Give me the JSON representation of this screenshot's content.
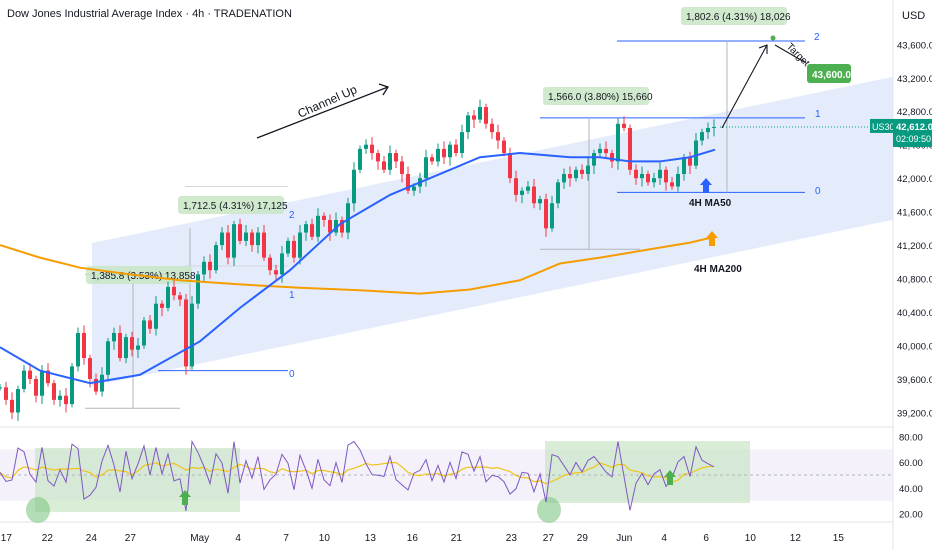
{
  "chart_title": "Dow Jones Industrial Average Index · 4h · TRADENATION",
  "currency": "USD",
  "colors": {
    "up": "#089981",
    "down": "#f23645",
    "ma50": "#2962ff",
    "ma200": "#f59d00",
    "channel": "#dbe6fb",
    "rsi": "#7e57c2",
    "rsi_ma": "#f0c419",
    "green_box": "#c9e6c6",
    "label_green": "#4caf50"
  },
  "chart_data": [
    {
      "type": "candlestick",
      "symbol": "US30",
      "timeframe": "4h",
      "ylim": [
        39050,
        43950
      ],
      "y_ticks": [
        "43,600.0",
        "43,200.0",
        "42,800.0",
        "42,400.0",
        "42,000.0",
        "41,600.0",
        "41,200.0",
        "40,800.0",
        "40,400.0",
        "40,000.0",
        "39,600.0",
        "39,200.0"
      ],
      "x_ticks": [
        "17",
        "22",
        "24",
        "27",
        "May",
        "4",
        "7",
        "10",
        "13",
        "16",
        "21",
        "23",
        "27",
        "29",
        "Jun",
        "4",
        "6",
        "10",
        "12",
        "15"
      ],
      "last_price": "42,612.0",
      "countdown": "02:09:50",
      "price_label": "US30",
      "close_path": [
        [
          0,
          39500
        ],
        [
          6,
          39350
        ],
        [
          12,
          39200
        ],
        [
          18,
          39480
        ],
        [
          24,
          39700
        ],
        [
          30,
          39600
        ],
        [
          36,
          39400
        ],
        [
          42,
          39700
        ],
        [
          48,
          39550
        ],
        [
          54,
          39350
        ],
        [
          60,
          39400
        ],
        [
          66,
          39300
        ],
        [
          72,
          39750
        ],
        [
          78,
          40150
        ],
        [
          84,
          39850
        ],
        [
          90,
          39600
        ],
        [
          96,
          39450
        ],
        [
          102,
          39650
        ],
        [
          108,
          40050
        ],
        [
          114,
          40150
        ],
        [
          120,
          39850
        ],
        [
          126,
          40100
        ],
        [
          132,
          39950
        ],
        [
          138,
          40000
        ],
        [
          144,
          40300
        ],
        [
          150,
          40200
        ],
        [
          156,
          40500
        ],
        [
          162,
          40450
        ],
        [
          168,
          40700
        ],
        [
          174,
          40600
        ],
        [
          180,
          40550
        ],
        [
          186,
          39750
        ],
        [
          192,
          40500
        ],
        [
          198,
          40850
        ],
        [
          204,
          41000
        ],
        [
          210,
          40900
        ],
        [
          216,
          41200
        ],
        [
          222,
          41350
        ],
        [
          228,
          41050
        ],
        [
          234,
          41450
        ],
        [
          240,
          41250
        ],
        [
          246,
          41350
        ],
        [
          252,
          41200
        ],
        [
          258,
          41350
        ],
        [
          264,
          41050
        ],
        [
          270,
          40900
        ],
        [
          276,
          40850
        ],
        [
          282,
          41100
        ],
        [
          288,
          41250
        ],
        [
          294,
          41050
        ],
        [
          300,
          41350
        ],
        [
          306,
          41450
        ],
        [
          312,
          41300
        ],
        [
          318,
          41550
        ],
        [
          324,
          41500
        ],
        [
          330,
          41350
        ],
        [
          336,
          41500
        ],
        [
          342,
          41350
        ],
        [
          348,
          41700
        ],
        [
          354,
          42100
        ],
        [
          360,
          42350
        ],
        [
          366,
          42400
        ],
        [
          372,
          42300
        ],
        [
          378,
          42200
        ],
        [
          384,
          42100
        ],
        [
          390,
          42300
        ],
        [
          396,
          42200
        ],
        [
          402,
          42050
        ],
        [
          408,
          41850
        ],
        [
          414,
          41900
        ],
        [
          420,
          42000
        ],
        [
          426,
          42250
        ],
        [
          432,
          42200
        ],
        [
          438,
          42350
        ],
        [
          444,
          42250
        ],
        [
          450,
          42400
        ],
        [
          456,
          42300
        ],
        [
          462,
          42550
        ],
        [
          468,
          42750
        ],
        [
          474,
          42700
        ],
        [
          480,
          42850
        ],
        [
          486,
          42650
        ],
        [
          492,
          42550
        ],
        [
          498,
          42450
        ],
        [
          504,
          42300
        ],
        [
          510,
          42000
        ],
        [
          516,
          41800
        ],
        [
          522,
          41850
        ],
        [
          528,
          41900
        ],
        [
          534,
          41700
        ],
        [
          540,
          41750
        ],
        [
          546,
          41400
        ],
        [
          552,
          41700
        ],
        [
          558,
          41950
        ],
        [
          564,
          42050
        ],
        [
          570,
          42000
        ],
        [
          576,
          42100
        ],
        [
          582,
          42050
        ],
        [
          588,
          42150
        ],
        [
          594,
          42300
        ],
        [
          600,
          42350
        ],
        [
          606,
          42300
        ],
        [
          612,
          42200
        ],
        [
          618,
          42650
        ],
        [
          624,
          42600
        ],
        [
          630,
          42100
        ],
        [
          636,
          42000
        ],
        [
          642,
          42050
        ],
        [
          648,
          41950
        ],
        [
          654,
          42000
        ],
        [
          660,
          42100
        ],
        [
          666,
          41950
        ],
        [
          672,
          41900
        ],
        [
          678,
          42050
        ],
        [
          684,
          42250
        ],
        [
          690,
          42150
        ],
        [
          696,
          42450
        ],
        [
          702,
          42550
        ],
        [
          708,
          42600
        ],
        [
          714,
          42612
        ]
      ],
      "ma50": [
        [
          0,
          39980
        ],
        [
          40,
          39700
        ],
        [
          90,
          39550
        ],
        [
          140,
          39650
        ],
        [
          200,
          40050
        ],
        [
          240,
          40450
        ],
        [
          290,
          40900
        ],
        [
          340,
          41450
        ],
        [
          390,
          41800
        ],
        [
          430,
          42000
        ],
        [
          480,
          42250
        ],
        [
          520,
          42300
        ],
        [
          570,
          42250
        ],
        [
          600,
          42250
        ],
        [
          630,
          42200
        ],
        [
          660,
          42200
        ],
        [
          690,
          42250
        ],
        [
          715,
          42340
        ]
      ],
      "ma200": [
        [
          0,
          41200
        ],
        [
          40,
          41050
        ],
        [
          80,
          40930
        ],
        [
          130,
          40850
        ],
        [
          180,
          40780
        ],
        [
          240,
          40730
        ],
        [
          300,
          40690
        ],
        [
          360,
          40660
        ],
        [
          420,
          40620
        ],
        [
          470,
          40670
        ],
        [
          520,
          40780
        ],
        [
          560,
          40980
        ],
        [
          600,
          41050
        ],
        [
          650,
          41150
        ],
        [
          690,
          41230
        ],
        [
          715,
          41300
        ]
      ],
      "rsi_ylim": [
        15,
        85
      ],
      "rsi_ticks": [
        "80.00",
        "60.00",
        "40.00",
        "20.00"
      ],
      "annotations": {
        "channel_label": "Channel Up",
        "target_label": "Target",
        "target_price": "43,600.0",
        "ma50_label": "4H MA50",
        "ma200_label": "4H MA200",
        "measure_1": "1,385.8 (3.53%) 13,858",
        "measure_2": "1,712.5 (4.31%) 17,125",
        "measure_3": "1,566.0 (3.80%) 15,660",
        "measure_4": "1,802.6 (4.31%) 18,026",
        "fib_0": "0",
        "fib_1": "1",
        "fib_2": "2"
      }
    }
  ]
}
